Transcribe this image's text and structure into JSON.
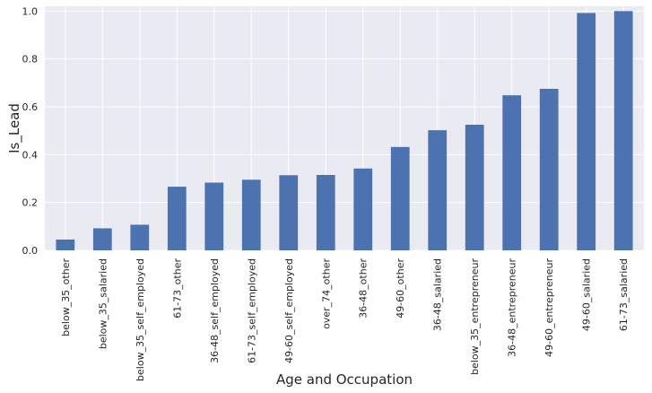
{
  "chart_data": {
    "type": "bar",
    "title": "",
    "xlabel": "Age and Occupation",
    "ylabel": "Is_Lead",
    "ylim": [
      0,
      1.02
    ],
    "yticks": [
      "0.0",
      "0.2",
      "0.4",
      "0.6",
      "0.8",
      "1.0"
    ],
    "grid": true,
    "bar_color": "#4c72b0",
    "background_color": "#eaeaf2",
    "grid_color": "#ffffff",
    "categories": [
      "below_35_other",
      "below_35_salaried",
      "below_35_self_employed",
      "61-73_other",
      "36-48_self_employed",
      "61-73_self_employed",
      "49-60_self_employed",
      "over_74_other",
      "36-48_other",
      "49-60_other",
      "36-48_salaried",
      "below_35_entrepreneur",
      "36-48_entrepreneur",
      "49-60_entrepreneur",
      "49-60_salaried",
      "61-73_salaried"
    ],
    "values": [
      0.045,
      0.092,
      0.107,
      0.266,
      0.283,
      0.295,
      0.314,
      0.315,
      0.342,
      0.432,
      0.502,
      0.525,
      0.648,
      0.675,
      0.992,
      1.0
    ]
  }
}
